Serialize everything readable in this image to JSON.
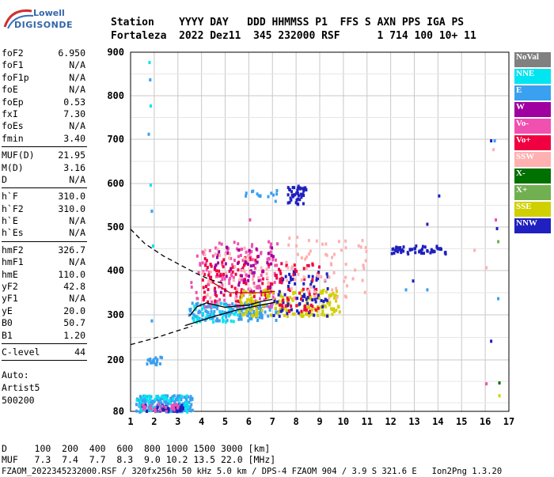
{
  "logo": {
    "line1": "Lowell",
    "line2": "DIGISONDE"
  },
  "header": {
    "line1": "Station    YYYY DAY   DDD HHMMSS P1  FFS S AXN PPS IGA PS",
    "line2": "Fortaleza  2022 Dez11  345 232000 RSF      1 714 100 10+ 11"
  },
  "params": [
    {
      "k": "foF2",
      "v": "6.950"
    },
    {
      "k": "foF1",
      "v": "N/A"
    },
    {
      "k": "foF1p",
      "v": "N/A"
    },
    {
      "k": "foE",
      "v": "N/A"
    },
    {
      "k": "foEp",
      "v": "0.53"
    },
    {
      "k": "fxI",
      "v": "7.30"
    },
    {
      "k": "foEs",
      "v": "N/A"
    },
    {
      "k": "fmin",
      "v": "3.40"
    },
    {
      "k": "MUF(D)",
      "v": "21.95"
    },
    {
      "k": "M(D)",
      "v": "3.16"
    },
    {
      "k": "D",
      "v": "N/A"
    },
    {
      "k": "h`F",
      "v": "310.0"
    },
    {
      "k": "h`F2",
      "v": "310.0"
    },
    {
      "k": "h`E",
      "v": "N/A"
    },
    {
      "k": "h`Es",
      "v": "N/A"
    },
    {
      "k": "hmF2",
      "v": "326.7"
    },
    {
      "k": "hmF1",
      "v": "N/A"
    },
    {
      "k": "hmE",
      "v": "110.0"
    },
    {
      "k": "yF2",
      "v": "42.8"
    },
    {
      "k": "yF1",
      "v": "N/A"
    },
    {
      "k": "yE",
      "v": "20.0"
    },
    {
      "k": "B0",
      "v": "50.7"
    },
    {
      "k": "B1",
      "v": "1.20"
    },
    {
      "k": "C-level",
      "v": "44"
    }
  ],
  "notes": [
    "Auto:",
    "Artist5",
    "500200"
  ],
  "legend": [
    {
      "label": "NoVal",
      "color": "#808080"
    },
    {
      "label": "NNE",
      "color": "#00e5f0"
    },
    {
      "label": "E",
      "color": "#3aa0f0"
    },
    {
      "label": "W",
      "color": "#a000a0"
    },
    {
      "label": "Vo-",
      "color": "#f050b0"
    },
    {
      "label": "Vo+",
      "color": "#f00040"
    },
    {
      "label": "SSW",
      "color": "#ffb0b0"
    },
    {
      "label": "X-",
      "color": "#007000"
    },
    {
      "label": "X+",
      "color": "#70b050"
    },
    {
      "label": "SSE",
      "color": "#d0d000"
    },
    {
      "label": "NNW",
      "color": "#2020c0"
    }
  ],
  "footer": {
    "line1": "D     100  200  400  600  800 1000 1500 3000 [km]",
    "line2": "MUF   7.3  7.4  7.7  8.3  9.0 10.2 13.5 22.0 [MHz]",
    "line3": "FZAOM_2022345232000.RSF / 320fx256h 50 kHz 5.0 km / DPS-4 FZAOM 904 / 3.9 S 321.6 E   Ion2Png 1.3.20"
  },
  "chart_data": {
    "type": "scatter",
    "xlim": [
      1,
      17
    ],
    "ylim": [
      80,
      900
    ],
    "xticks": [
      1,
      2,
      3,
      4,
      5,
      6,
      7,
      8,
      9,
      10,
      11,
      12,
      13,
      14,
      15,
      16,
      17
    ],
    "yticks": [
      80,
      200,
      300,
      400,
      500,
      600,
      700,
      800,
      900
    ],
    "grid": true,
    "traces": [
      {
        "name": "profile",
        "color": "#000000",
        "style": "dashed",
        "x": [
          1.0,
          1.6,
          2.4,
          3.2,
          3.8,
          4.3,
          4.7,
          5.0
        ],
        "y": [
          495,
          462,
          433,
          410,
          393,
          381,
          374,
          370
        ]
      },
      {
        "name": "profile",
        "color": "#000000",
        "style": "solid",
        "x": [
          3.3,
          4.5,
          5.5,
          6.5,
          7.1
        ],
        "y": [
          276,
          296,
          311,
          322,
          328
        ]
      },
      {
        "name": "profile",
        "color": "#000000",
        "style": "dashed",
        "x": [
          1.0,
          2.0,
          3.0,
          3.6
        ],
        "y": [
          234,
          248,
          265,
          275
        ]
      },
      {
        "name": "O-trace",
        "color": "#c00000",
        "style": "solid",
        "x": [
          4.5,
          5.2,
          6.0,
          6.5,
          7.1
        ],
        "y": [
          372,
          350,
          350,
          350,
          353
        ]
      },
      {
        "name": "X-trace",
        "color": "#000000",
        "style": "solid",
        "x": [
          3.5,
          3.8,
          4.2,
          4.6,
          5.0,
          5.5,
          6.0,
          6.5,
          7.0
        ],
        "y": [
          298,
          318,
          327,
          322,
          317,
          320,
          322,
          330,
          335
        ]
      }
    ],
    "clusters": [
      {
        "color": "#3aa0f0",
        "x": [
          3.4,
          7.2
        ],
        "y": [
          290,
          330
        ],
        "n": 160
      },
      {
        "color": "#00e5f0",
        "x": [
          3.6,
          5.5
        ],
        "y": [
          285,
          330
        ],
        "n": 40
      },
      {
        "color": "#f050b0",
        "x": [
          3.5,
          7.2
        ],
        "y": [
          320,
          470
        ],
        "n": 150
      },
      {
        "color": "#f00040",
        "x": [
          4.0,
          7.0
        ],
        "y": [
          330,
          440
        ],
        "n": 90
      },
      {
        "color": "#a000a0",
        "x": [
          4.5,
          7.0
        ],
        "y": [
          350,
          460
        ],
        "n": 50
      },
      {
        "color": "#ffb0b0",
        "x": [
          4.0,
          7.0
        ],
        "y": [
          330,
          460
        ],
        "n": 40
      },
      {
        "color": "#d0d000",
        "x": [
          5.5,
          9.8
        ],
        "y": [
          300,
          360
        ],
        "n": 170
      },
      {
        "color": "#2020c0",
        "x": [
          7.0,
          9.3
        ],
        "y": [
          300,
          410
        ],
        "n": 70
      },
      {
        "color": "#f00040",
        "x": [
          7.0,
          9.0
        ],
        "y": [
          310,
          420
        ],
        "n": 60
      },
      {
        "color": "#ffb0b0",
        "x": [
          7.5,
          11.0
        ],
        "y": [
          340,
          480
        ],
        "n": 70
      },
      {
        "color": "#2020c0",
        "x": [
          7.6,
          8.4
        ],
        "y": [
          555,
          600
        ],
        "n": 45
      },
      {
        "color": "#2020c0",
        "x": [
          12.0,
          14.3
        ],
        "y": [
          440,
          460
        ],
        "n": 55
      },
      {
        "color": "#3aa0f0",
        "x": [
          1.2,
          3.6
        ],
        "y": [
          82,
          120
        ],
        "n": 160
      },
      {
        "color": "#00e5f0",
        "x": [
          1.2,
          3.4
        ],
        "y": [
          82,
          120
        ],
        "n": 60
      },
      {
        "color": "#2020c0",
        "x": [
          1.4,
          3.2
        ],
        "y": [
          82,
          100
        ],
        "n": 45
      },
      {
        "color": "#f050b0",
        "x": [
          1.4,
          3.0
        ],
        "y": [
          82,
          100
        ],
        "n": 25
      },
      {
        "color": "#3aa0f0",
        "x": [
          1.6,
          2.3
        ],
        "y": [
          192,
          210
        ],
        "n": 18
      },
      {
        "color": "#3aa0f0",
        "x": [
          5.8,
          7.2
        ],
        "y": [
          560,
          590
        ],
        "n": 14
      }
    ],
    "points": [
      {
        "x": 1.75,
        "y": 880,
        "color": "#00e5f0"
      },
      {
        "x": 1.78,
        "y": 840,
        "color": "#3aa0f0"
      },
      {
        "x": 1.8,
        "y": 780,
        "color": "#00e5f0"
      },
      {
        "x": 1.72,
        "y": 715,
        "color": "#3aa0f0"
      },
      {
        "x": 1.8,
        "y": 600,
        "color": "#00e5f0"
      },
      {
        "x": 1.85,
        "y": 540,
        "color": "#3aa0f0"
      },
      {
        "x": 1.9,
        "y": 460,
        "color": "#00e5f0"
      },
      {
        "x": 1.85,
        "y": 290,
        "color": "#3aa0f0"
      },
      {
        "x": 14.0,
        "y": 575,
        "color": "#2020c0"
      },
      {
        "x": 16.2,
        "y": 700,
        "color": "#2020c0"
      },
      {
        "x": 16.35,
        "y": 700,
        "color": "#3aa0f0"
      },
      {
        "x": 16.3,
        "y": 680,
        "color": "#ffb0b0"
      },
      {
        "x": 16.4,
        "y": 520,
        "color": "#f050b0"
      },
      {
        "x": 16.45,
        "y": 500,
        "color": "#2020c0"
      },
      {
        "x": 16.5,
        "y": 470,
        "color": "#70b050"
      },
      {
        "x": 16.5,
        "y": 340,
        "color": "#3aa0f0"
      },
      {
        "x": 16.2,
        "y": 245,
        "color": "#2020c0"
      },
      {
        "x": 16.55,
        "y": 150,
        "color": "#007000"
      },
      {
        "x": 16.0,
        "y": 148,
        "color": "#f050b0"
      },
      {
        "x": 16.55,
        "y": 120,
        "color": "#d0d000"
      },
      {
        "x": 12.6,
        "y": 360,
        "color": "#3aa0f0"
      },
      {
        "x": 13.5,
        "y": 360,
        "color": "#3aa0f0"
      },
      {
        "x": 13.5,
        "y": 510,
        "color": "#2020c0"
      },
      {
        "x": 12.9,
        "y": 380,
        "color": "#2020c0"
      },
      {
        "x": 15.5,
        "y": 450,
        "color": "#ffb0b0"
      },
      {
        "x": 16.0,
        "y": 410,
        "color": "#ffb0b0"
      },
      {
        "x": 6.0,
        "y": 520,
        "color": "#f050b0"
      },
      {
        "x": 8.0,
        "y": 480,
        "color": "#ffb0b0"
      }
    ]
  }
}
